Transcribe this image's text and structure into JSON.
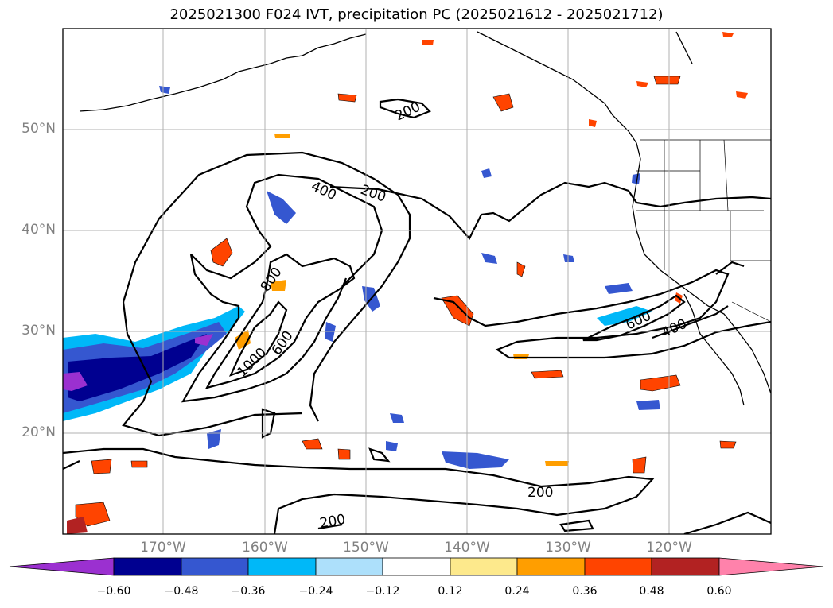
{
  "title": "2025021300 F024 IVT, precipitation PC (2025021612 - 2025021712)",
  "lat_labels": [
    "50°N",
    "40°N",
    "30°N",
    "20°N"
  ],
  "lon_labels": [
    "170°W",
    "160°W",
    "150°W",
    "140°W",
    "130°W",
    "120°W"
  ],
  "contour_labels": [
    "200",
    "200",
    "200",
    "200",
    "400",
    "400",
    "600",
    "600",
    "800",
    "1000"
  ],
  "colorbar": {
    "ticks": [
      "−0.60",
      "−0.48",
      "−0.36",
      "−0.24",
      "−0.12",
      "0.12",
      "0.24",
      "0.36",
      "0.48",
      "0.60"
    ],
    "colors": [
      "#9b30d0",
      "#000090",
      "#3557d0",
      "#00b8f8",
      "#ade0fb",
      "#ffffff",
      "#fde98c",
      "#ff9e00",
      "#ff4400",
      "#b22222",
      "#ff82ab"
    ]
  }
}
